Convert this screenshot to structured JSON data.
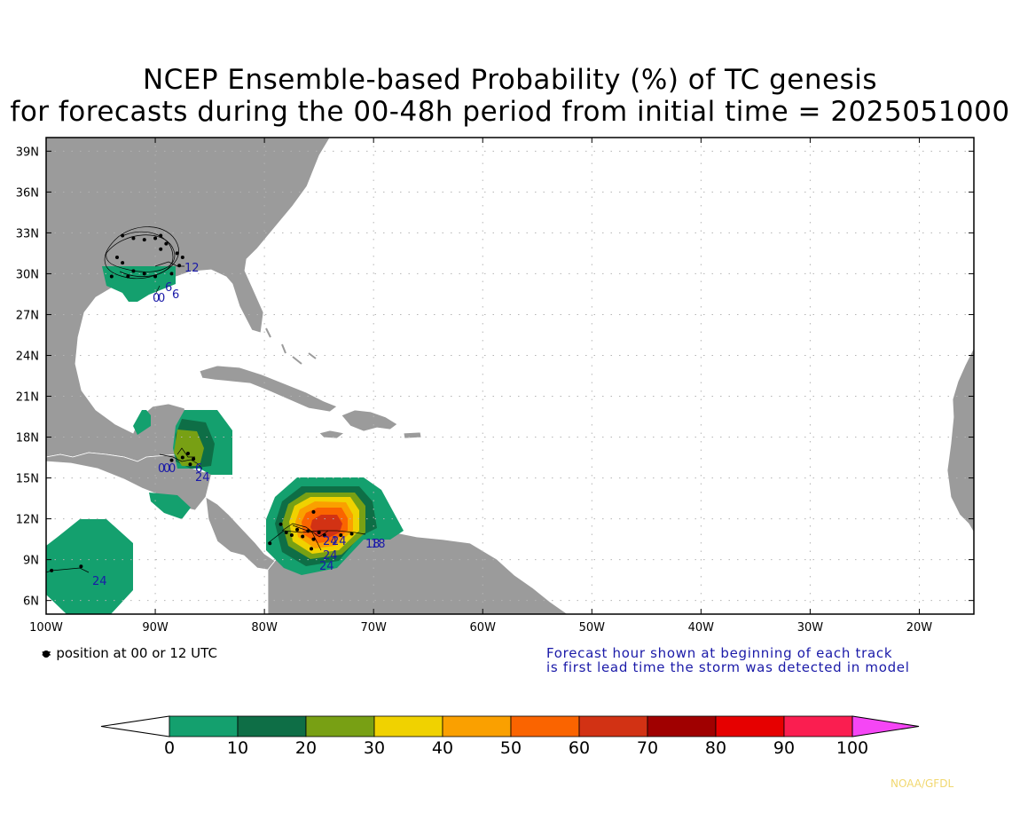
{
  "title": {
    "line1": "NCEP Ensemble-based Probability (%) of TC genesis",
    "line2": "for forecasts during the 00-48h period from initial time = 2025051000"
  },
  "map": {
    "lon_range": [
      -100,
      -15
    ],
    "lat_range": [
      5,
      40
    ],
    "lat_ticks": [
      "39N",
      "36N",
      "33N",
      "30N",
      "27N",
      "24N",
      "21N",
      "18N",
      "15N",
      "12N",
      "9N",
      "6N"
    ],
    "lon_ticks": [
      "100W",
      "90W",
      "80W",
      "70W",
      "60W",
      "50W",
      "40W",
      "30W",
      "20W"
    ],
    "grid": "dotted",
    "land_color": "#9b9b9b",
    "ocean_color": "#ffffff",
    "border_color": "#ffffff"
  },
  "legend": {
    "marker_text": "= position at 00 or 12 UTC",
    "note_line1": "Forecast hour shown at beginning of each track",
    "note_line2": "is first lead time the storm was detected in model"
  },
  "colorbar": {
    "labels": [
      "0",
      "10",
      "20",
      "30",
      "40",
      "50",
      "60",
      "70",
      "80",
      "90",
      "100"
    ],
    "colors": [
      "#14a06e",
      "#0e6e46",
      "#78a014",
      "#f0d200",
      "#faa000",
      "#fa6400",
      "#d23214",
      "#a00000",
      "#e60000",
      "#fa1e50",
      "#f546f5"
    ]
  },
  "track_labels": {
    "gulf": [
      "12",
      "6",
      "0",
      "0",
      "6"
    ],
    "central_america": [
      "0",
      "0",
      "0",
      "6",
      "24"
    ],
    "caribbean": [
      "24",
      "24",
      "24",
      "18",
      "18",
      "24"
    ],
    "pacific": [
      "24"
    ]
  },
  "credit": "NOAA/GFDL"
}
